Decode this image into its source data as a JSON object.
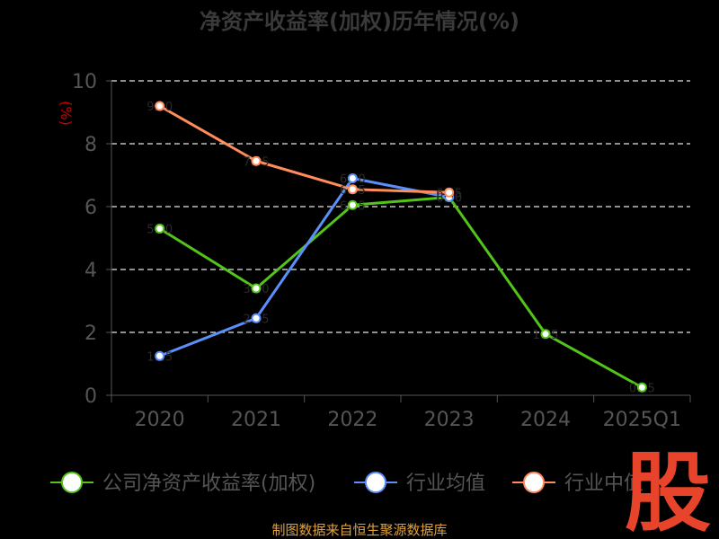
{
  "chart_data": {
    "type": "line",
    "title": "净资产收益率(加权)历年情况(%)",
    "ylabel": "(%)",
    "xlabel": "",
    "categories": [
      "2020",
      "2021",
      "2022",
      "2023",
      "2024",
      "2025Q1"
    ],
    "ylim": [
      0,
      10
    ],
    "yticks": [
      0,
      2,
      4,
      6,
      8,
      10
    ],
    "grid": true,
    "legend_position": "bottom",
    "series": [
      {
        "name": "公司净资产收益率(加权)",
        "color": "#52c41a",
        "values": [
          5.3,
          3.4,
          6.05,
          6.3,
          1.95,
          0.25
        ],
        "labels": [
          "5.30",
          "3.40",
          "6.05",
          "6.30",
          "1.95",
          "0.25"
        ]
      },
      {
        "name": "行业均值",
        "color": "#5b8ff9",
        "values": [
          1.25,
          2.45,
          6.9,
          6.3,
          null,
          null
        ],
        "labels": [
          "1.25",
          "2.45",
          "6.90",
          "6.30",
          "",
          ""
        ]
      },
      {
        "name": "行业中值",
        "color": "#ff8c5a",
        "values": [
          9.2,
          7.45,
          6.55,
          6.45,
          null,
          null
        ],
        "labels": [
          "9.20",
          "7.45",
          "6.55",
          "6.45",
          "",
          ""
        ]
      }
    ]
  },
  "footer": {
    "source": "制图数据来自恒生聚源数据库"
  },
  "logo": {
    "text": "股",
    "color": "#e8432b"
  }
}
